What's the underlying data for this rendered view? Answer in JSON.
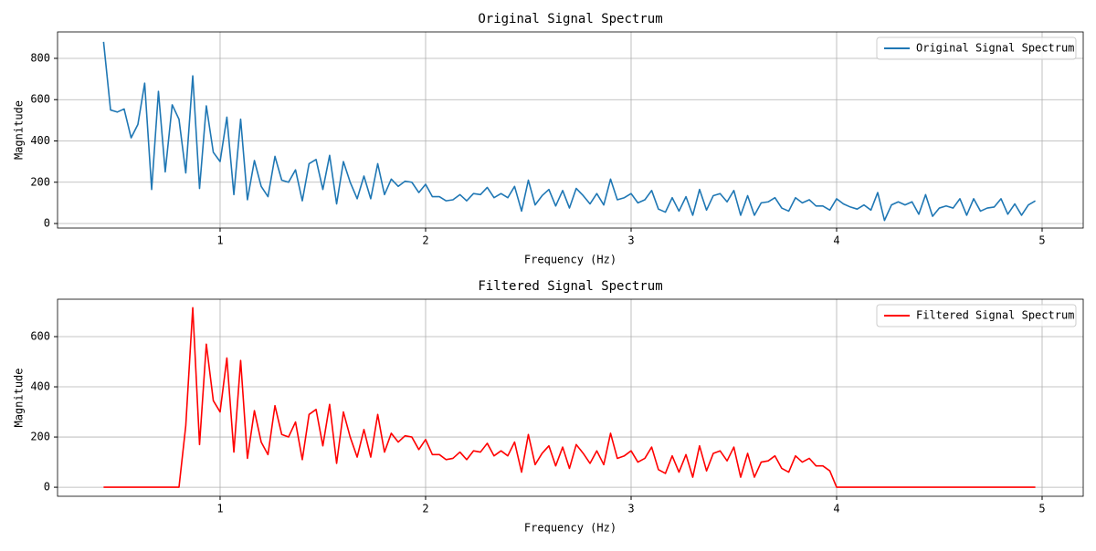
{
  "chart_data": [
    {
      "type": "line",
      "title": "Original Signal Spectrum",
      "xlabel": "Frequency (Hz)",
      "ylabel": "Magnitude",
      "x": [
        0.433,
        0.467,
        0.5,
        0.533,
        0.567,
        0.6,
        0.633,
        0.667,
        0.7,
        0.733,
        0.767,
        0.8,
        0.833,
        0.867,
        0.9,
        0.933,
        0.967,
        1.0,
        1.033,
        1.067,
        1.1,
        1.133,
        1.167,
        1.2,
        1.233,
        1.267,
        1.3,
        1.333,
        1.367,
        1.4,
        1.433,
        1.467,
        1.5,
        1.533,
        1.567,
        1.6,
        1.633,
        1.667,
        1.7,
        1.733,
        1.767,
        1.8,
        1.833,
        1.867,
        1.9,
        1.933,
        1.967,
        2.0,
        2.033,
        2.067,
        2.1,
        2.133,
        2.167,
        2.2,
        2.233,
        2.267,
        2.3,
        2.333,
        2.367,
        2.4,
        2.433,
        2.467,
        2.5,
        2.533,
        2.567,
        2.6,
        2.633,
        2.667,
        2.7,
        2.733,
        2.767,
        2.8,
        2.833,
        2.867,
        2.9,
        2.933,
        2.967,
        3.0,
        3.033,
        3.067,
        3.1,
        3.133,
        3.167,
        3.2,
        3.233,
        3.267,
        3.3,
        3.333,
        3.367,
        3.4,
        3.433,
        3.467,
        3.5,
        3.533,
        3.567,
        3.6,
        3.633,
        3.667,
        3.7,
        3.733,
        3.767,
        3.8,
        3.833,
        3.867,
        3.9,
        3.933,
        3.967,
        4.0,
        4.033,
        4.067,
        4.1,
        4.133,
        4.167,
        4.2,
        4.233,
        4.267,
        4.3,
        4.333,
        4.367,
        4.4,
        4.433,
        4.467,
        4.5,
        4.533,
        4.567,
        4.6,
        4.633,
        4.667,
        4.7,
        4.733,
        4.767,
        4.8,
        4.833,
        4.867,
        4.9,
        4.933,
        4.967
      ],
      "series": [
        {
          "name": "Original Signal Spectrum",
          "color": "#1f77b4",
          "values": [
            880,
            550,
            540,
            555,
            415,
            480,
            680,
            165,
            640,
            250,
            575,
            505,
            245,
            715,
            170,
            570,
            345,
            300,
            515,
            140,
            505,
            115,
            305,
            180,
            130,
            325,
            210,
            200,
            260,
            110,
            290,
            310,
            165,
            330,
            95,
            300,
            200,
            120,
            230,
            120,
            290,
            140,
            215,
            180,
            205,
            200,
            150,
            190,
            130,
            130,
            110,
            115,
            140,
            110,
            145,
            140,
            175,
            125,
            145,
            125,
            180,
            60,
            210,
            90,
            135,
            165,
            85,
            160,
            75,
            170,
            135,
            95,
            145,
            90,
            215,
            115,
            125,
            145,
            100,
            115,
            160,
            70,
            55,
            125,
            60,
            130,
            40,
            165,
            65,
            135,
            145,
            105,
            160,
            40,
            135,
            40,
            100,
            105,
            125,
            75,
            60,
            125,
            100,
            115,
            85,
            85,
            65,
            120,
            95,
            80,
            70,
            90,
            65,
            150,
            15,
            90,
            105,
            90,
            105,
            45,
            140,
            35,
            75,
            85,
            75,
            120,
            40,
            120,
            60,
            75,
            80,
            120,
            45,
            95,
            40,
            90,
            110
          ]
        }
      ],
      "xlim": [
        0.209,
        5.2
      ],
      "ylim": [
        -22,
        928
      ],
      "xticks": [
        1,
        2,
        3,
        4,
        5
      ],
      "yticks": [
        0,
        200,
        400,
        600,
        800
      ],
      "grid": true,
      "legend": "upper right"
    },
    {
      "type": "line",
      "title": "Filtered Signal Spectrum",
      "xlabel": "Frequency (Hz)",
      "ylabel": "Magnitude",
      "x": [
        0.433,
        0.467,
        0.5,
        0.533,
        0.567,
        0.6,
        0.633,
        0.667,
        0.7,
        0.733,
        0.767,
        0.8,
        0.833,
        0.867,
        0.9,
        0.933,
        0.967,
        1.0,
        1.033,
        1.067,
        1.1,
        1.133,
        1.167,
        1.2,
        1.233,
        1.267,
        1.3,
        1.333,
        1.367,
        1.4,
        1.433,
        1.467,
        1.5,
        1.533,
        1.567,
        1.6,
        1.633,
        1.667,
        1.7,
        1.733,
        1.767,
        1.8,
        1.833,
        1.867,
        1.9,
        1.933,
        1.967,
        2.0,
        2.033,
        2.067,
        2.1,
        2.133,
        2.167,
        2.2,
        2.233,
        2.267,
        2.3,
        2.333,
        2.367,
        2.4,
        2.433,
        2.467,
        2.5,
        2.533,
        2.567,
        2.6,
        2.633,
        2.667,
        2.7,
        2.733,
        2.767,
        2.8,
        2.833,
        2.867,
        2.9,
        2.933,
        2.967,
        3.0,
        3.033,
        3.067,
        3.1,
        3.133,
        3.167,
        3.2,
        3.233,
        3.267,
        3.3,
        3.333,
        3.367,
        3.4,
        3.433,
        3.467,
        3.5,
        3.533,
        3.567,
        3.6,
        3.633,
        3.667,
        3.7,
        3.733,
        3.767,
        3.8,
        3.833,
        3.867,
        3.9,
        3.933,
        3.967,
        4.0,
        4.033,
        4.067,
        4.1,
        4.133,
        4.167,
        4.2,
        4.233,
        4.267,
        4.3,
        4.333,
        4.367,
        4.4,
        4.433,
        4.467,
        4.5,
        4.533,
        4.567,
        4.6,
        4.633,
        4.667,
        4.7,
        4.733,
        4.767,
        4.8,
        4.833,
        4.867,
        4.9,
        4.933,
        4.967
      ],
      "series": [
        {
          "name": "Filtered Signal Spectrum",
          "color": "#ff0000",
          "values": [
            0,
            0,
            0,
            0,
            0,
            0,
            0,
            0,
            0,
            0,
            0,
            0,
            245,
            715,
            170,
            570,
            345,
            300,
            515,
            140,
            505,
            115,
            305,
            180,
            130,
            325,
            210,
            200,
            260,
            110,
            290,
            310,
            165,
            330,
            95,
            300,
            200,
            120,
            230,
            120,
            290,
            140,
            215,
            180,
            205,
            200,
            150,
            190,
            130,
            130,
            110,
            115,
            140,
            110,
            145,
            140,
            175,
            125,
            145,
            125,
            180,
            60,
            210,
            90,
            135,
            165,
            85,
            160,
            75,
            170,
            135,
            95,
            145,
            90,
            215,
            115,
            125,
            145,
            100,
            115,
            160,
            70,
            55,
            125,
            60,
            130,
            40,
            165,
            65,
            135,
            145,
            105,
            160,
            40,
            135,
            40,
            100,
            105,
            125,
            75,
            60,
            125,
            100,
            115,
            85,
            85,
            65,
            0,
            0,
            0,
            0,
            0,
            0,
            0,
            0,
            0,
            0,
            0,
            0,
            0,
            0,
            0,
            0,
            0,
            0,
            0,
            0,
            0,
            0,
            0,
            0,
            0,
            0,
            0,
            0,
            0,
            0
          ]
        }
      ],
      "xlim": [
        0.209,
        5.2
      ],
      "ylim": [
        -36,
        749
      ],
      "xticks": [
        1,
        2,
        3,
        4,
        5
      ],
      "yticks": [
        0,
        200,
        400,
        600
      ],
      "grid": true,
      "legend": "upper right"
    }
  ]
}
